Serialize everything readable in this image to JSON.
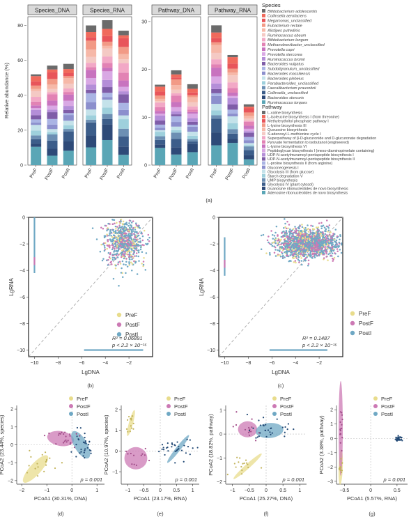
{
  "figure": {
    "panel_labels": [
      "(a)",
      "(b)",
      "(c)",
      "(d)",
      "(e)",
      "(f)",
      "(g)"
    ],
    "legend_headers": {
      "species": "Species",
      "pathway": "Pathway"
    }
  },
  "chart_data": [
    {
      "id": "a",
      "type": "bar",
      "stacked": true,
      "ylabel": "Relative abundance (%)",
      "facets": [
        {
          "strip": "Species_DNA",
          "categories": [
            "PreF",
            "PostF",
            "PostI"
          ],
          "ylim": [
            0,
            85
          ],
          "yticks": [
            0,
            20,
            40,
            60,
            80
          ],
          "totals": [
            52,
            57,
            58
          ]
        },
        {
          "strip": "Species_RNA",
          "categories": [
            "PreF",
            "PostF",
            "PostI"
          ],
          "ylim": [
            0,
            85
          ],
          "yticks": [
            0,
            20,
            40,
            60,
            80
          ],
          "totals": [
            80,
            83,
            77
          ]
        },
        {
          "strip": "Pathway_DNA",
          "categories": [
            "PreF",
            "PostF",
            "PostI"
          ],
          "ylim": [
            0,
            31
          ],
          "yticks": [
            0,
            10,
            20,
            30
          ],
          "totals": [
            16.8,
            19.8,
            16.9
          ]
        },
        {
          "strip": "Pathway_RNA",
          "categories": [
            "PreF",
            "PostF",
            "PostI"
          ],
          "ylim": [
            0,
            31
          ],
          "yticks": [
            0,
            10,
            20,
            30
          ],
          "totals": [
            29.2,
            23,
            12.7
          ]
        }
      ],
      "species_legend": [
        {
          "name": "Bifidobacterium adolescentis",
          "color": "#6b6b6b"
        },
        {
          "name": "Collinsella aerofaciens",
          "color": "#f06a5c"
        },
        {
          "name": "Megamonas_unclassified",
          "color": "#e8555a"
        },
        {
          "name": "Eubacterium rectale",
          "color": "#f29a86"
        },
        {
          "name": "Alistipes putredinis",
          "color": "#f6b8a8"
        },
        {
          "name": "Ruminococcus obeum",
          "color": "#f4c9c4"
        },
        {
          "name": "Bifidobacterium longum",
          "color": "#f2a8c6"
        },
        {
          "name": "Methanobrevibacter_unclassified",
          "color": "#e282b4"
        },
        {
          "name": "Prevotella copri",
          "color": "#c873bf"
        },
        {
          "name": "Prevotella stercorea",
          "color": "#d9a8e4"
        },
        {
          "name": "Ruminococcus bromii",
          "color": "#b48ed8"
        },
        {
          "name": "Bacteroides vulgatus",
          "color": "#7f5da8"
        },
        {
          "name": "Subdoligranulum_unclassified",
          "color": "#aab4e4"
        },
        {
          "name": "Bacteroides massiliensis",
          "color": "#8c8fcd"
        },
        {
          "name": "Bacteroides plebeius",
          "color": "#c4e2ea"
        },
        {
          "name": "Parabacteroides_unclassified",
          "color": "#9ed0dc"
        },
        {
          "name": "Faecalibacterium prausnitzii",
          "color": "#6c8fb3"
        },
        {
          "name": "Collinsella_unclassified",
          "color": "#3c5d8a"
        },
        {
          "name": "Bacteroides stercoris",
          "color": "#2e4a78"
        },
        {
          "name": "Ruminococcus torques",
          "color": "#5aa6b6"
        }
      ],
      "pathway_legend": [
        {
          "name": "L-valine biosynthesis",
          "color": "#6b6b6b"
        },
        {
          "name": "L-isoleucine biosynthesis I (from threonine)",
          "color": "#f06a5c"
        },
        {
          "name": "Methylerythritol phosphate pathway I",
          "color": "#e8555a"
        },
        {
          "name": "L-lysine biosynthesis III",
          "color": "#f29a86"
        },
        {
          "name": "Queuosine biosynthesis",
          "color": "#f6b8a8"
        },
        {
          "name": "S-adenosyl-L-methionine cycle I",
          "color": "#f4c9c4"
        },
        {
          "name": "Superpathway of β-D-glucuronide and D-glucuronate degradation",
          "color": "#f2a8c6"
        },
        {
          "name": "Pyruvate fermentation to isobutanol (engineered)",
          "color": "#e282b4"
        },
        {
          "name": "L-lysine biosynthesis VI",
          "color": "#c873bf"
        },
        {
          "name": "Peptidoglycan biosynthesis I (meso-diaminopimelate containing)",
          "color": "#d9a8e4"
        },
        {
          "name": "UDP-N-acetylmuramoyl-pentapeptide biosynthesis I",
          "color": "#b48ed8"
        },
        {
          "name": "UDP-N-acetylmuramoyl-pentapeptide biosynthesis II",
          "color": "#7f5da8"
        },
        {
          "name": "L-proline biosynthesis II (from arginine)",
          "color": "#aab4e4"
        },
        {
          "name": "Gluconeogenesis I",
          "color": "#8c8fcd"
        },
        {
          "name": "Glycolysis III (from glucose)",
          "color": "#c4e2ea"
        },
        {
          "name": "Starch degradation V",
          "color": "#9ed0dc"
        },
        {
          "name": "UMP biosynthesis",
          "color": "#6c8fb3"
        },
        {
          "name": "Glycolysis IV (plant cytosol)",
          "color": "#3c5d8a"
        },
        {
          "name": "Guanosine ribonucleotides de novo biosynthesis",
          "color": "#2e4a78"
        },
        {
          "name": "Adenosine ribonucleotides de novo biosynthesis",
          "color": "#5aa6b6"
        }
      ]
    },
    {
      "id": "b",
      "type": "scatter",
      "xlabel": "LgDNA",
      "ylabel": "LgRNA",
      "xlim": [
        -10.5,
        0
      ],
      "ylim": [
        -10.5,
        0
      ],
      "xticks": [
        -10,
        -8,
        -6,
        -4,
        -2
      ],
      "yticks": [
        0,
        -2,
        -4,
        -6,
        -8,
        -10
      ],
      "series": [
        {
          "name": "PreF",
          "color": "#e8dc8c"
        },
        {
          "name": "PostF",
          "color": "#cc79b4"
        },
        {
          "name": "PostI",
          "color": "#6fa8c4"
        }
      ],
      "clusters": [
        {
          "shape": "cloud",
          "x": [
            -4.2,
            -0.6
          ],
          "y": [
            -3.7,
            0
          ],
          "n": 700
        },
        {
          "shape": "vline",
          "x": -10,
          "y": [
            -4.2,
            0
          ]
        },
        {
          "shape": "hline",
          "y": -10,
          "x": [
            -5.8,
            -0.8
          ]
        }
      ],
      "stat_line1": "R² = 0.06891",
      "stat_line2": "p < 2.2 × 10⁻¹⁶",
      "diagonal": true
    },
    {
      "id": "c",
      "type": "scatter",
      "xlabel": "LgDNA",
      "ylabel": "LgRNA",
      "xlim": [
        -10.5,
        0
      ],
      "ylim": [
        -10.5,
        0
      ],
      "xticks": [
        -10,
        -8,
        -6,
        -4,
        -2
      ],
      "yticks": [
        0,
        -2,
        -4,
        -6,
        -8,
        -10
      ],
      "series": [
        {
          "name": "PreF",
          "color": "#e8dc8c"
        },
        {
          "name": "PostF",
          "color": "#cc79b4"
        },
        {
          "name": "PostI",
          "color": "#6fa8c4"
        }
      ],
      "clusters": [
        {
          "shape": "cloud",
          "x": [
            -5.8,
            -0.3
          ],
          "y": [
            -3.2,
            -0.8
          ],
          "n": 1600
        },
        {
          "shape": "vline",
          "x": -10,
          "y": [
            -4.4,
            -1.5
          ]
        },
        {
          "shape": "hline",
          "y": -10,
          "x": [
            -6.2,
            -1.3
          ]
        }
      ],
      "stat_line1": "R² = 0.1487",
      "stat_line2": "p < 2.2 × 10⁻¹⁶",
      "diagonal": true
    },
    {
      "id": "d",
      "type": "scatter",
      "xlabel": "PCoA1 (30.31%, DNA)",
      "ylabel": "PCoA2 (23.44%, species)",
      "xlim": [
        -2.2,
        1.3
      ],
      "ylim": [
        -2.2,
        2.2
      ],
      "xticks": [
        -2,
        -1,
        0,
        1
      ],
      "yticks": [
        -2,
        -1,
        0,
        1,
        2
      ],
      "p_text": "p = 0.001",
      "series": [
        {
          "name": "PreF",
          "color": "#e8dc8c",
          "ellipse": {
            "cx": -1.45,
            "cy": -1.35,
            "rx": 0.95,
            "ry": 0.42,
            "angle_deg": 48
          },
          "pts_center": [
            -1.3,
            -1.0
          ],
          "pts_spread": [
            0.5,
            0.6
          ],
          "n": 18
        },
        {
          "name": "PostF",
          "color": "#cc79b4",
          "ellipse": {
            "cx": -0.45,
            "cy": 0.35,
            "rx": 0.72,
            "ry": 0.55,
            "angle_deg": -10
          },
          "pts_center": [
            -0.4,
            0.3
          ],
          "pts_spread": [
            0.5,
            0.5
          ],
          "n": 22
        },
        {
          "name": "PostI",
          "color": "#6fa8c4",
          "ellipse": {
            "cx": 0.35,
            "cy": 0.0,
            "rx": 0.82,
            "ry": 0.48,
            "angle_deg": -60
          },
          "pts_center": [
            0.4,
            0.0
          ],
          "pts_spread": [
            0.4,
            0.6
          ],
          "n": 30
        }
      ]
    },
    {
      "id": "e",
      "type": "scatter",
      "xlabel": "PCoA1 (23.17%, RNA)",
      "ylabel": "PCoA2 (10.97%, species)",
      "xlim": [
        -1.2,
        1.2
      ],
      "ylim": [
        -1.6,
        2.2
      ],
      "xticks": [
        -1.0,
        -0.5,
        0,
        0.5,
        1.0
      ],
      "yticks": [
        -1,
        0,
        1,
        2
      ],
      "p_text": "p = 0.001",
      "series": [
        {
          "name": "PreF",
          "color": "#e8dc8c",
          "ellipse": {
            "cx": -0.9,
            "cy": 1.35,
            "rx": 0.55,
            "ry": 0.13,
            "angle_deg": 75
          },
          "pts_center": [
            -0.9,
            1.35
          ],
          "pts_spread": [
            0.1,
            0.4
          ],
          "n": 14
        },
        {
          "name": "PostF",
          "color": "#cc79b4",
          "ellipse": {
            "cx": -0.75,
            "cy": -0.35,
            "rx": 0.47,
            "ry": 0.72,
            "angle_deg": 0
          },
          "pts_center": [
            -0.75,
            -0.35
          ],
          "pts_spread": [
            0.3,
            0.5
          ],
          "n": 12
        },
        {
          "name": "PostI",
          "color": "#6fa8c4",
          "ellipse": {
            "cx": 0.55,
            "cy": 0.1,
            "rx": 0.72,
            "ry": 0.15,
            "angle_deg": 52
          },
          "pts_center": [
            0.55,
            0.1
          ],
          "pts_spread": [
            0.4,
            0.35
          ],
          "n": 34
        }
      ]
    },
    {
      "id": "f",
      "type": "scatter",
      "xlabel": "PCoA1 (25.27%, DNA)",
      "ylabel": "PCoA2 (18.82%, pathway)",
      "xlim": [
        -1.2,
        1.2
      ],
      "ylim": [
        -2.1,
        1.2
      ],
      "xticks": [
        -1.0,
        -0.5,
        0,
        0.5,
        1.0
      ],
      "yticks": [
        -2,
        -1,
        0,
        1
      ],
      "p_text": "p = 0.001",
      "series": [
        {
          "name": "PreF",
          "color": "#e8dc8c",
          "ellipse": {
            "cx": -0.55,
            "cy": -1.35,
            "rx": 0.75,
            "ry": 0.13,
            "angle_deg": 42
          },
          "pts_center": [
            -0.5,
            -1.3
          ],
          "pts_spread": [
            0.4,
            0.4
          ],
          "n": 16
        },
        {
          "name": "PostF",
          "color": "#cc79b4",
          "ellipse": {
            "cx": -0.55,
            "cy": 0.2,
            "rx": 0.38,
            "ry": 0.45,
            "angle_deg": 0
          },
          "pts_center": [
            -0.55,
            0.2
          ],
          "pts_spread": [
            0.3,
            0.35
          ],
          "n": 14
        },
        {
          "name": "PostI",
          "color": "#6fa8c4",
          "ellipse": {
            "cx": 0.1,
            "cy": 0.15,
            "rx": 0.55,
            "ry": 0.42,
            "angle_deg": 5
          },
          "pts_center": [
            0.1,
            0.15
          ],
          "pts_spread": [
            0.4,
            0.3
          ],
          "n": 30
        }
      ]
    },
    {
      "id": "g",
      "type": "scatter",
      "xlabel": "PCoA1 (5.57%, RNA)",
      "ylabel": "PCoA2 (3.38%, pathway)",
      "xlim": [
        -0.65,
        0.7
      ],
      "ylim": [
        -3.2,
        2.3
      ],
      "xticks": [
        -0.5,
        0,
        0.5
      ],
      "yticks": [
        -3,
        -2,
        -1,
        0,
        1,
        2
      ],
      "p_text": "p = 0.001",
      "series": [
        {
          "name": "PreF",
          "color": "#e8dc8c",
          "ellipse": {
            "cx": -0.57,
            "cy": -2.0,
            "rx": 0.45,
            "ry": 0.03,
            "angle_deg": 88
          },
          "pts_center": [
            -0.57,
            -2.0
          ],
          "pts_spread": [
            0.02,
            0.35
          ],
          "n": 14
        },
        {
          "name": "PostF",
          "color": "#cc79b4",
          "ellipse": {
            "cx": -0.57,
            "cy": 0.7,
            "rx": 1.2,
            "ry": 0.035,
            "angle_deg": 90
          },
          "pts_center": [
            -0.57,
            0.7
          ],
          "pts_spread": [
            0.02,
            0.8
          ],
          "n": 16
        },
        {
          "name": "PostI",
          "color": "#6fa8c4",
          "ellipse": null,
          "pts_center": [
            0.53,
            0.0
          ],
          "pts_spread": [
            0.05,
            0.12
          ],
          "n": 32
        }
      ]
    }
  ]
}
